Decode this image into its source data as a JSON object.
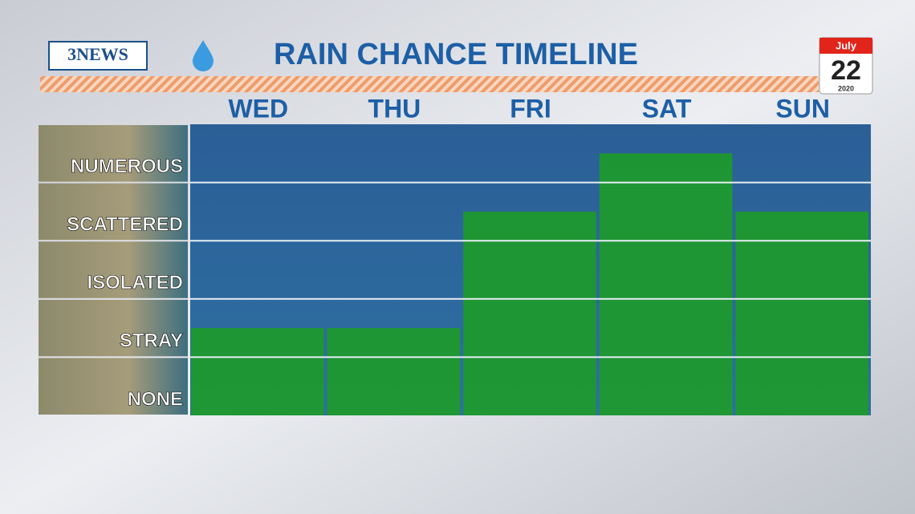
{
  "header": {
    "logo": "3NEWS",
    "calendar": {
      "month": "July",
      "day": "22",
      "year": "2020"
    }
  },
  "chart_data": {
    "type": "bar",
    "title": "RAIN CHANCE TIMELINE",
    "categories": [
      "WED",
      "THU",
      "FRI",
      "SAT",
      "SUN"
    ],
    "values": [
      1.5,
      1.5,
      3.5,
      4.5,
      3.5
    ],
    "color": "#1d9a2a",
    "ylim": [
      0,
      5
    ],
    "y_bands": [
      {
        "label": "NONE",
        "range": [
          0,
          1
        ]
      },
      {
        "label": "STRAY",
        "range": [
          1,
          2
        ]
      },
      {
        "label": "ISOLATED",
        "range": [
          2,
          3
        ]
      },
      {
        "label": "SCATTERED",
        "range": [
          3,
          4
        ]
      },
      {
        "label": "NUMEROUS",
        "range": [
          4,
          5
        ]
      }
    ],
    "grid": true
  }
}
